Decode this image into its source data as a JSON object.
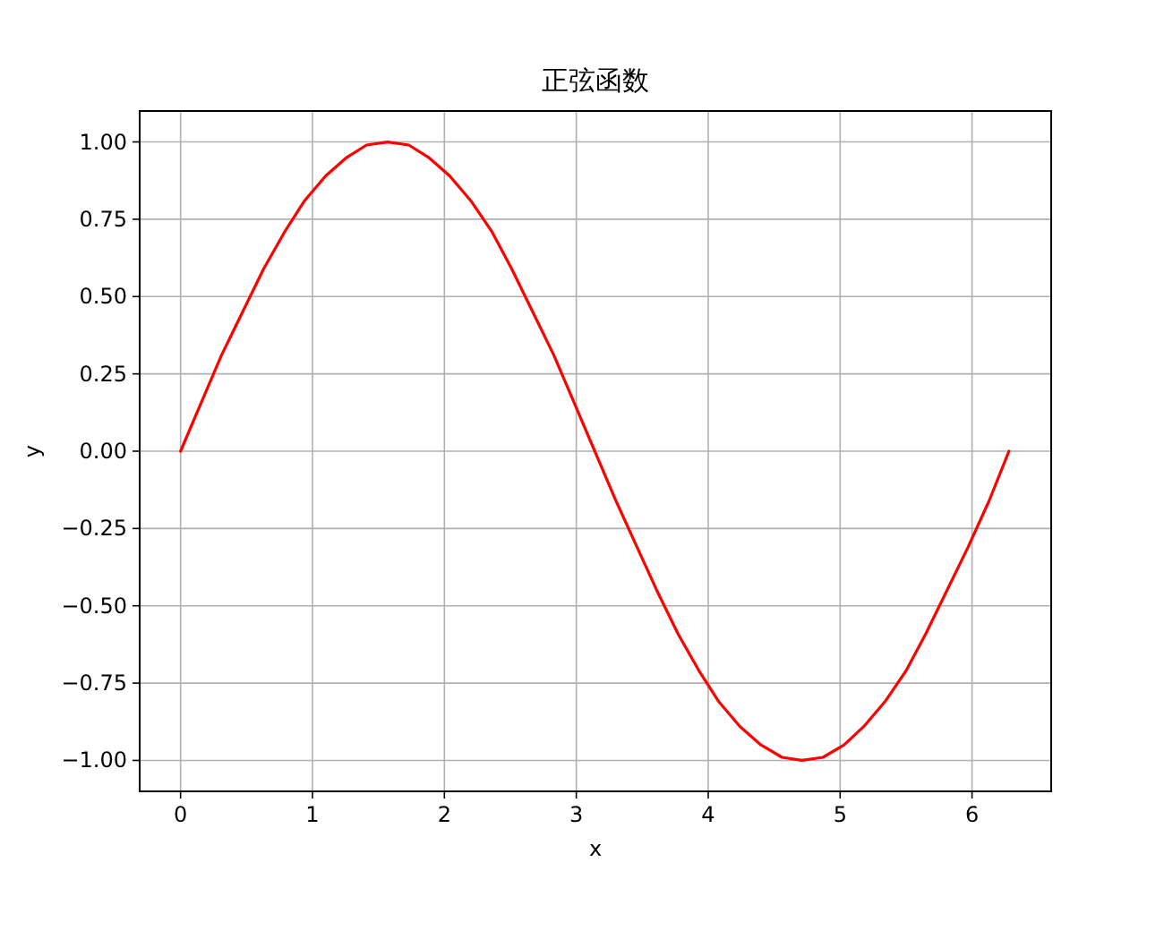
{
  "chart_data": {
    "type": "line",
    "title": "正弦函数",
    "xlabel": "x",
    "ylabel": "y",
    "x": [
      0,
      0.16,
      0.31,
      0.47,
      0.63,
      0.79,
      0.94,
      1.1,
      1.26,
      1.41,
      1.57,
      1.73,
      1.88,
      2.04,
      2.2,
      2.36,
      2.51,
      2.67,
      2.83,
      2.98,
      3.14,
      3.3,
      3.46,
      3.61,
      3.77,
      3.93,
      4.08,
      4.24,
      4.4,
      4.56,
      4.71,
      4.87,
      5.03,
      5.18,
      5.34,
      5.5,
      5.65,
      5.81,
      5.97,
      6.13,
      6.28
    ],
    "series": [
      {
        "color": "#ff0000",
        "values": [
          0,
          0.16,
          0.31,
          0.45,
          0.59,
          0.71,
          0.81,
          0.89,
          0.95,
          0.99,
          1,
          0.99,
          0.95,
          0.89,
          0.81,
          0.71,
          0.59,
          0.45,
          0.31,
          0.16,
          0,
          -0.16,
          -0.31,
          -0.45,
          -0.59,
          -0.71,
          -0.81,
          -0.89,
          -0.95,
          -0.99,
          -1,
          -0.99,
          -0.95,
          -0.89,
          -0.81,
          -0.71,
          -0.59,
          -0.45,
          -0.31,
          -0.16,
          0
        ]
      }
    ],
    "xlim": [
      -0.31,
      6.6
    ],
    "ylim": [
      -1.1,
      1.1
    ],
    "xticks": [
      0,
      1,
      2,
      3,
      4,
      5,
      6
    ],
    "yticks": [
      {
        "value": -1,
        "label": "−1.00"
      },
      {
        "value": -0.75,
        "label": "−0.75"
      },
      {
        "value": -0.5,
        "label": "−0.50"
      },
      {
        "value": -0.25,
        "label": "−0.25"
      },
      {
        "value": 0,
        "label": "0.00"
      },
      {
        "value": 0.25,
        "label": "0.25"
      },
      {
        "value": 0.5,
        "label": "0.50"
      },
      {
        "value": 0.75,
        "label": "0.75"
      },
      {
        "value": 1,
        "label": "1.00"
      }
    ],
    "grid": true
  }
}
